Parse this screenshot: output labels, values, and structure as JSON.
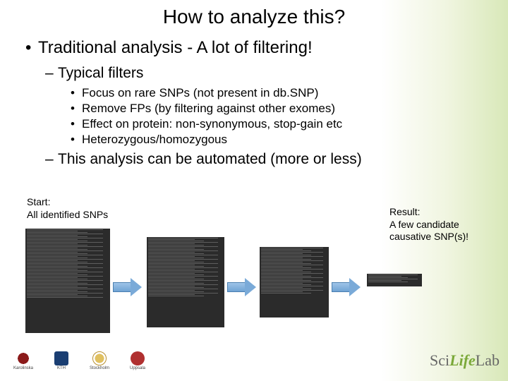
{
  "title": "How to analyze this?",
  "bullets": {
    "l1": "Traditional analysis - A lot of filtering!",
    "l2a": "Typical filters",
    "l3a": "Focus on rare SNPs (not present in db.SNP)",
    "l3b": "Remove FPs (by filtering against other exomes)",
    "l3c": "Effect on protein: non-synonymous, stop-gain etc",
    "l3d": "Heterozygous/homozygous",
    "l2b": "This analysis can be automated (more or less)"
  },
  "diagram": {
    "start_label_line1": "Start:",
    "start_label_line2": "All identified SNPs",
    "result_label_line1": "Result:",
    "result_label_line2": "A few candidate causative SNP(s)!",
    "arrow_color_top": "#9fc4e8",
    "arrow_color_bottom": "#6fa3d4",
    "arrow_border": "#4a7fb0",
    "screenshot_bg": "#2b2b2b",
    "screenshot_line": "#888888"
  },
  "footer": {
    "logos": [
      {
        "name": "Karolinska Institutet",
        "short": "Karolinska"
      },
      {
        "name": "KTH",
        "short": "KTH"
      },
      {
        "name": "Stockholms universitet",
        "short": "Stockholm"
      },
      {
        "name": "Uppsala universitet",
        "short": "Uppsala"
      }
    ],
    "brand_sci": "Sci",
    "brand_life": "Life",
    "brand_lab": "Lab"
  },
  "colors": {
    "bg_gradient_start": "#ffffff",
    "bg_gradient_end": "#d8e8b8",
    "text": "#000000"
  }
}
